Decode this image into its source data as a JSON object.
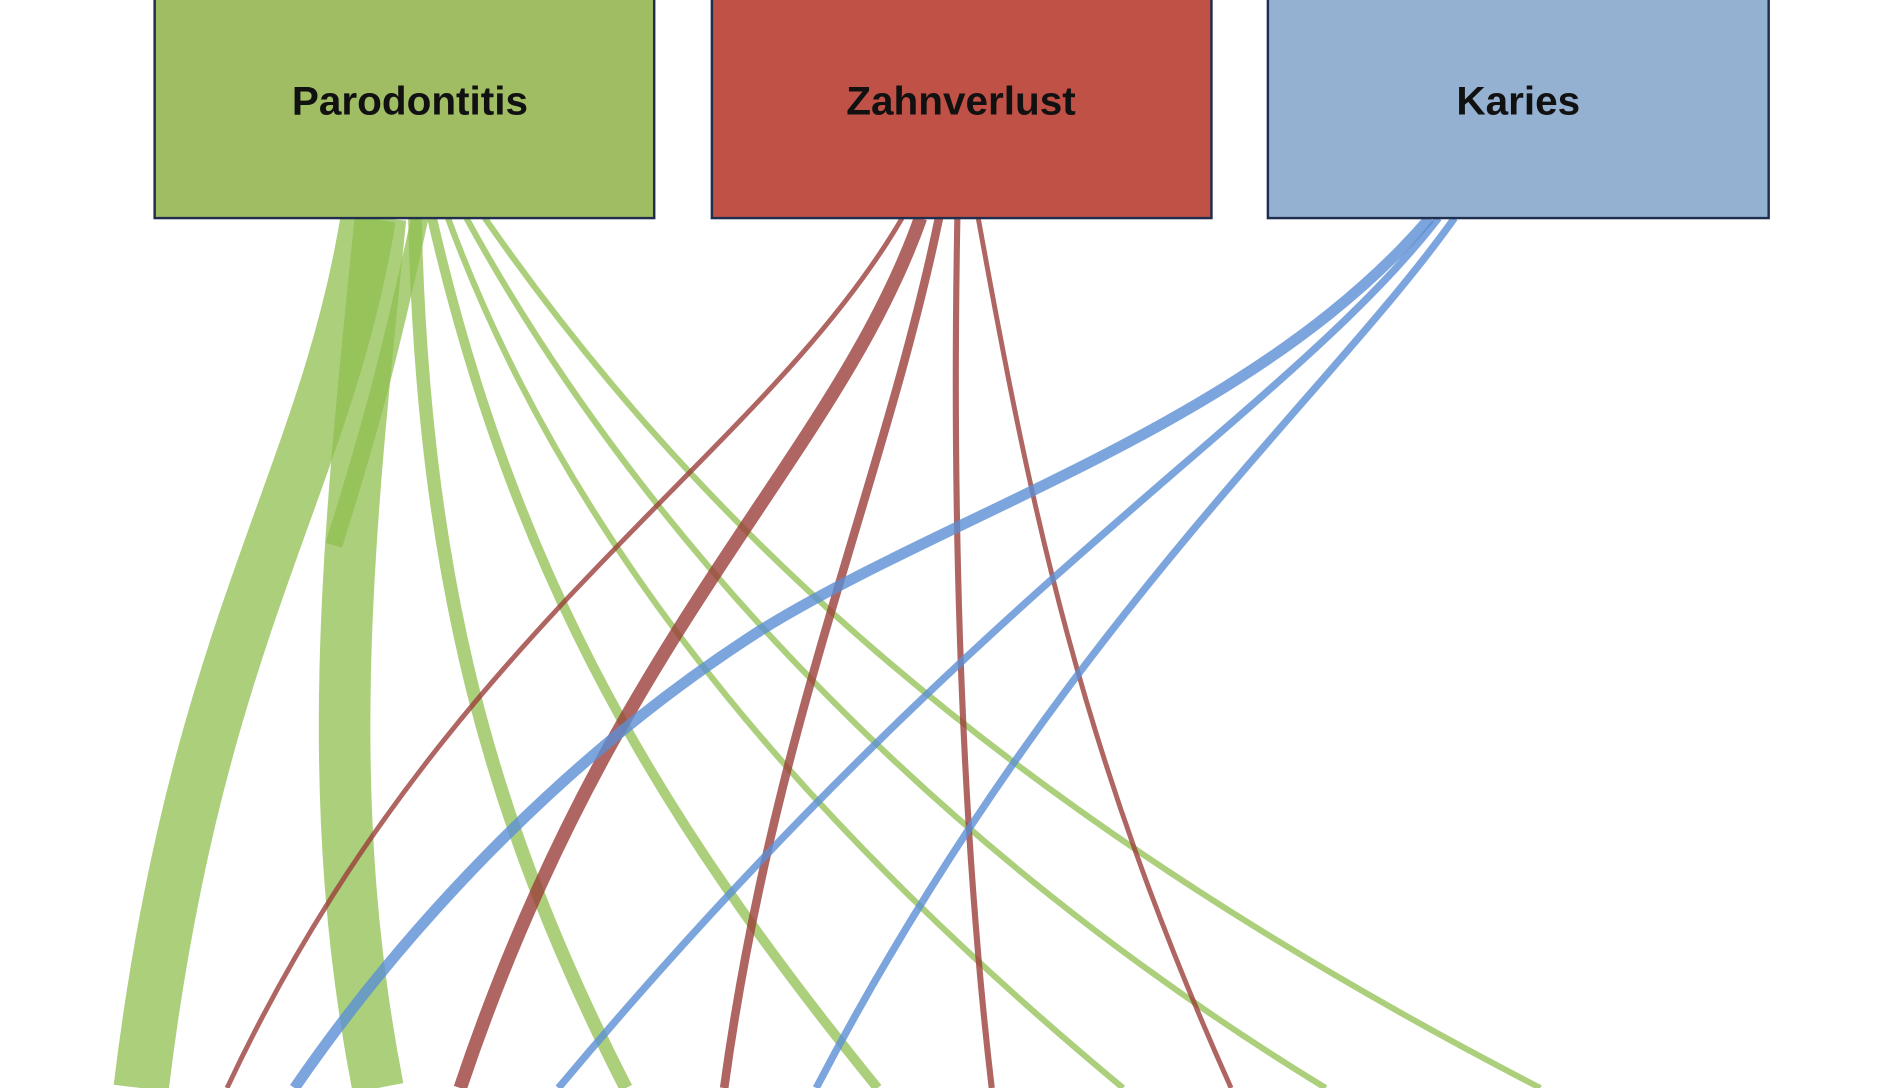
{
  "nodes": [
    {
      "label": "Parodontitis"
    },
    {
      "label": "Zahnverlust"
    },
    {
      "label": "Karies"
    }
  ]
}
